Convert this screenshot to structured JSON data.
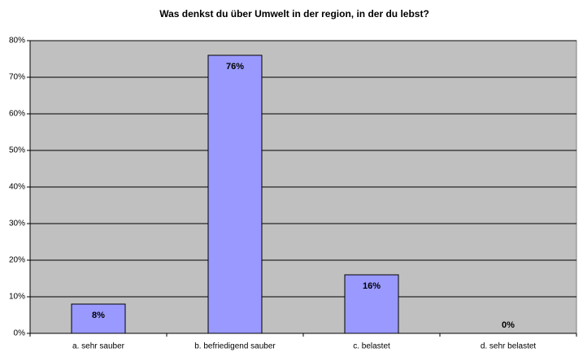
{
  "chart_data": {
    "type": "bar",
    "title": "Was denkst du über Umwelt in der region, in der du lebst?",
    "categories": [
      "a. sehr sauber",
      "b. befriedigend sauber",
      "c. belastet",
      "d. sehr belastet"
    ],
    "values": [
      8,
      76,
      16,
      0
    ],
    "value_labels": [
      "8%",
      "76%",
      "16%",
      "0%"
    ],
    "color": "#9999ff",
    "ylim": [
      0,
      80
    ],
    "yticks": [
      {
        "value": 0,
        "label": "0%"
      },
      {
        "value": 10,
        "label": "10%"
      },
      {
        "value": 20,
        "label": "20%"
      },
      {
        "value": 30,
        "label": "30%"
      },
      {
        "value": 40,
        "label": "40%"
      },
      {
        "value": 50,
        "label": "50%"
      },
      {
        "value": 60,
        "label": "60%"
      },
      {
        "value": 70,
        "label": "70%"
      },
      {
        "value": 80,
        "label": "80%"
      }
    ],
    "grid": true
  }
}
